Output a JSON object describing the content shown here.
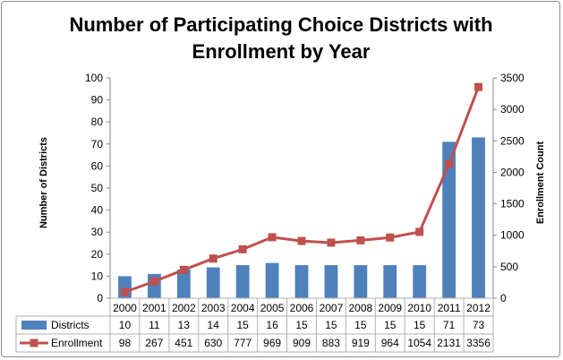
{
  "chart_data": {
    "type": "bar",
    "title_lines": [
      "Number of Participating Choice Districts with",
      "Enrollment by Year"
    ],
    "ylabel_left": "Number of Districts",
    "ylabel_right": "Enrollment Count",
    "categories": [
      "2000",
      "2001",
      "2002",
      "2003",
      "2004",
      "2005",
      "2006",
      "2007",
      "2008",
      "2009",
      "2010",
      "2011",
      "2012"
    ],
    "ylim_left": [
      0,
      100
    ],
    "yticks_left": [
      0,
      10,
      20,
      30,
      40,
      50,
      60,
      70,
      80,
      90,
      100
    ],
    "ylim_right": [
      0,
      3500
    ],
    "yticks_right": [
      0,
      500,
      1000,
      1500,
      2000,
      2500,
      3000,
      3500
    ],
    "series": [
      {
        "name": "Districts",
        "type": "bar",
        "axis": "left",
        "color": "#4f81bd",
        "values": [
          10,
          11,
          13,
          14,
          15,
          16,
          15,
          15,
          15,
          15,
          15,
          71,
          73
        ]
      },
      {
        "name": "Enrollment",
        "type": "line",
        "axis": "right",
        "color": "#c0504d",
        "values": [
          98,
          267,
          451,
          630,
          777,
          969,
          909,
          883,
          919,
          964,
          1054,
          2131,
          3356
        ]
      }
    ],
    "data_table": true,
    "grid": false
  }
}
